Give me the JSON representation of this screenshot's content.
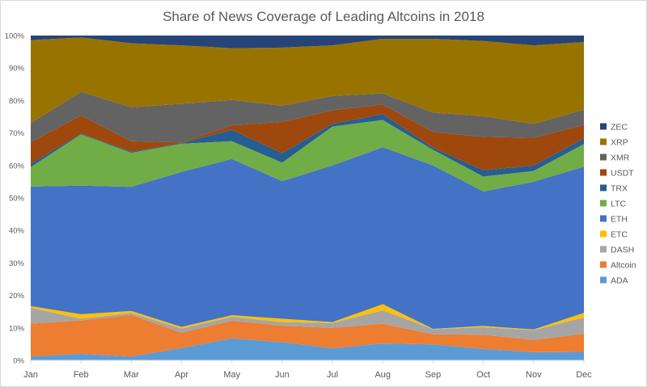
{
  "chart_data": {
    "type": "area",
    "stacked": "percent",
    "title": "Share of News Coverage of Leading Altcoins in 2018",
    "xlabel": "",
    "ylabel": "",
    "ylim": [
      0,
      100
    ],
    "y_ticks": [
      "0%",
      "10%",
      "20%",
      "30%",
      "40%",
      "50%",
      "60%",
      "70%",
      "80%",
      "90%",
      "100%"
    ],
    "grid": false,
    "legend_position": "right",
    "categories": [
      "Jan",
      "Feb",
      "Mar",
      "Apr",
      "May",
      "Jun",
      "Jul",
      "Aug",
      "Sep",
      "Oct",
      "Nov",
      "Dec"
    ],
    "series": [
      {
        "name": "ADA",
        "color": "#5B9BD5",
        "values": [
          1.2,
          2.0,
          1.2,
          3.8,
          6.8,
          5.6,
          3.7,
          5.2,
          4.9,
          3.5,
          2.5,
          2.6
        ]
      },
      {
        "name": "Altcoin",
        "color": "#ED7D31",
        "values": [
          10.1,
          10.3,
          12.8,
          4.7,
          5.4,
          5.1,
          6.3,
          6.1,
          3.1,
          4.4,
          3.8,
          5.6
        ]
      },
      {
        "name": "DASH",
        "color": "#A5A5A5",
        "values": [
          4.9,
          0.5,
          0.6,
          1.3,
          1.2,
          1.1,
          1.5,
          4.1,
          1.6,
          2.3,
          3.0,
          5.0
        ]
      },
      {
        "name": "ETC",
        "color": "#FFC000",
        "values": [
          0.5,
          1.4,
          0.6,
          0.5,
          0.5,
          1.0,
          0.3,
          1.9,
          0.1,
          0.4,
          0.2,
          1.4
        ]
      },
      {
        "name": "ETH",
        "color": "#4472C4",
        "values": [
          36.8,
          39.6,
          38.2,
          47.7,
          48.1,
          42.4,
          48.2,
          48.3,
          50.3,
          41.4,
          45.5,
          45.0
        ]
      },
      {
        "name": "LTC",
        "color": "#70AD47",
        "values": [
          6.0,
          15.8,
          10.5,
          8.7,
          5.5,
          5.7,
          12.0,
          8.4,
          4.8,
          4.6,
          3.3,
          7.0
        ]
      },
      {
        "name": "TRX",
        "color": "#255E91",
        "values": [
          1.0,
          0.2,
          0.3,
          0.2,
          3.5,
          2.9,
          0.8,
          1.8,
          0.7,
          1.9,
          1.7,
          1.7
        ]
      },
      {
        "name": "USDT",
        "color": "#9E480E",
        "values": [
          6.7,
          5.6,
          3.3,
          0.2,
          1.4,
          9.6,
          4.2,
          3.0,
          4.8,
          10.3,
          8.5,
          4.2
        ]
      },
      {
        "name": "XMR",
        "color": "#636363",
        "values": [
          5.8,
          7.3,
          10.4,
          11.9,
          7.8,
          5.0,
          4.4,
          3.4,
          6.0,
          6.4,
          4.3,
          4.7
        ]
      },
      {
        "name": "XRP",
        "color": "#997300",
        "values": [
          25.6,
          16.7,
          19.7,
          18.0,
          15.9,
          17.9,
          15.6,
          16.8,
          22.7,
          23.1,
          24.2,
          20.8
        ]
      },
      {
        "name": "ZEC",
        "color": "#264478",
        "values": [
          1.4,
          0.6,
          2.4,
          3.0,
          3.9,
          3.7,
          3.0,
          1.0,
          1.0,
          1.7,
          3.0,
          2.0
        ]
      }
    ]
  }
}
